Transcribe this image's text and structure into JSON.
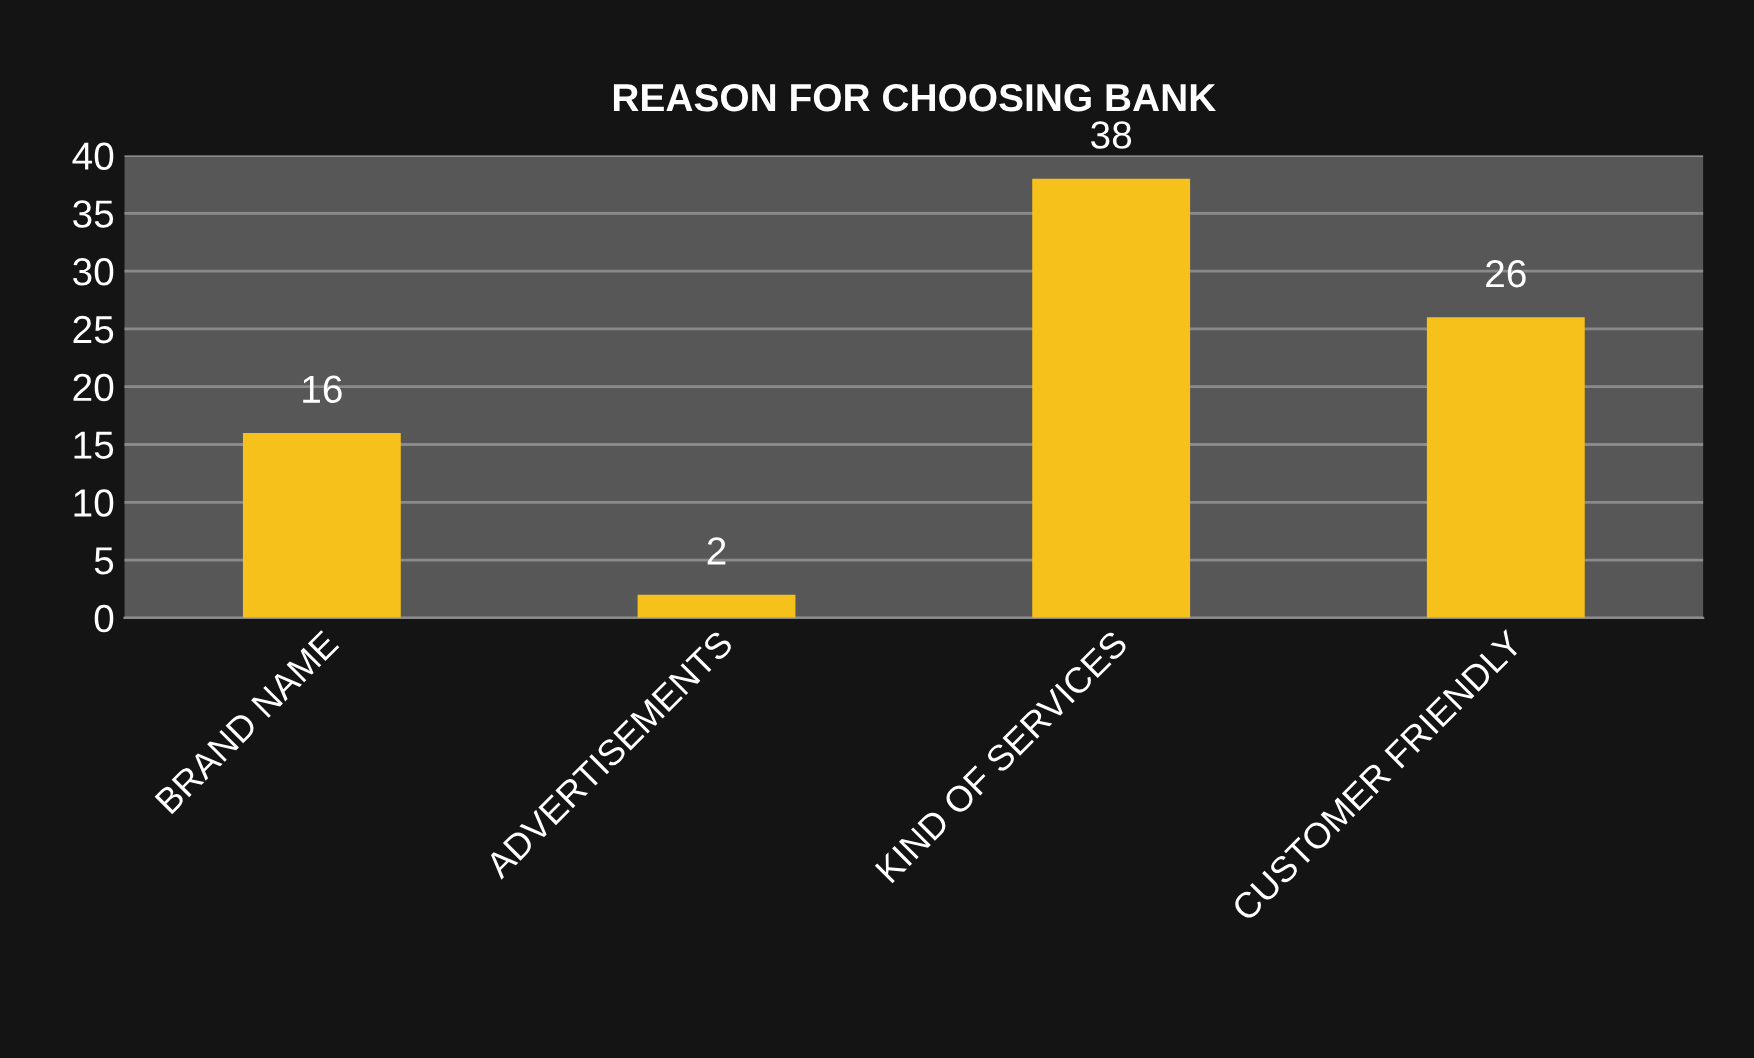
{
  "chart_data": {
    "type": "bar",
    "title": "REASON FOR CHOOSING BANK",
    "categories": [
      "BRAND NAME",
      "ADVERTISEMENTS",
      "KIND OF SERVICES",
      "CUSTOMER FRIENDLY"
    ],
    "values": [
      16,
      2,
      38,
      26
    ],
    "color": "#f5c11a",
    "ylim": [
      0,
      40
    ],
    "yticks": [
      0,
      5,
      10,
      15,
      20,
      25,
      30,
      35,
      40
    ],
    "grid": "y",
    "data_labels": true
  }
}
